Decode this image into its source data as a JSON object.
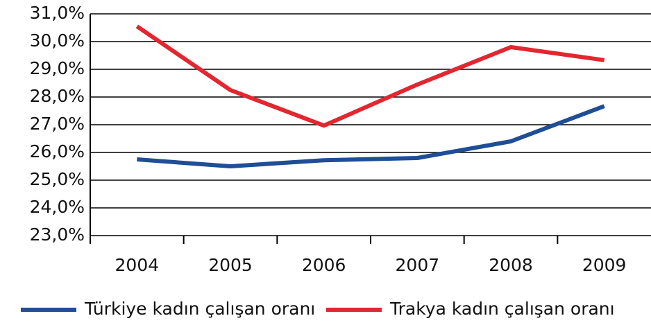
{
  "chart_data": {
    "type": "line",
    "categories": [
      "2004",
      "2005",
      "2006",
      "2007",
      "2008",
      "2009"
    ],
    "series": [
      {
        "name": "Türkiye kadın çalışan oranı",
        "color": "#1f4e96",
        "values": [
          25.75,
          25.5,
          25.72,
          25.8,
          26.4,
          27.67
        ]
      },
      {
        "name": "Trakya kadın çalışan oranı",
        "color": "#e3262f",
        "values": [
          30.55,
          28.25,
          26.97,
          28.45,
          29.8,
          29.33
        ]
      }
    ],
    "ylim": [
      23,
      31
    ],
    "yticks": [
      {
        "value": 23,
        "label": "23,0%"
      },
      {
        "value": 24,
        "label": "24,0%"
      },
      {
        "value": 25,
        "label": "25,0%"
      },
      {
        "value": 26,
        "label": "26,0%"
      },
      {
        "value": 27,
        "label": "27,0%"
      },
      {
        "value": 28,
        "label": "28,0%"
      },
      {
        "value": 29,
        "label": "29,0%"
      },
      {
        "value": 30,
        "label": "30,0%"
      },
      {
        "value": 31,
        "label": "31,0%"
      }
    ],
    "grid": true,
    "legend": "bottom"
  }
}
